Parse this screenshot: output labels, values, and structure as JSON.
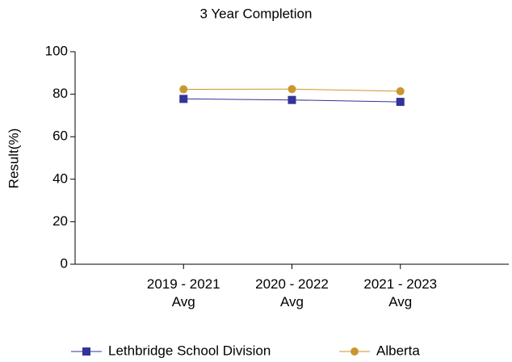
{
  "chart_data": {
    "type": "line",
    "title": "3 Year Completion",
    "y_label": "Result(%)",
    "categories": [
      "2019 - 2021 Avg",
      "2020 - 2022 Avg",
      "2021 - 2023 Avg"
    ],
    "series": [
      {
        "name": "Lethbridge School Division",
        "color": "#33339a",
        "marker": "square",
        "values": [
          77.8,
          77.3,
          76.4
        ]
      },
      {
        "name": "Alberta",
        "color": "#c9972f",
        "marker": "circle",
        "values": [
          82.3,
          82.4,
          81.4
        ]
      }
    ],
    "ylim": [
      0,
      100
    ],
    "yticks": [
      0,
      20,
      40,
      60,
      80,
      100
    ],
    "grid": false
  }
}
